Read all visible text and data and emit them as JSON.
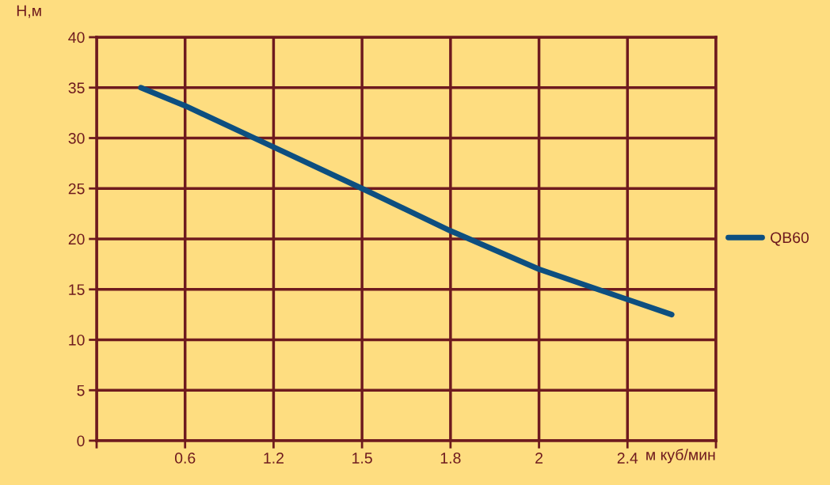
{
  "chart_data": {
    "type": "line",
    "ylabel": "Н,м",
    "xlabel": "м куб/мин",
    "categories": [
      null,
      null,
      "0.6",
      null,
      "1.2",
      null,
      "1.5",
      null,
      "1.8",
      null,
      "2",
      null,
      "2.4",
      null,
      null
    ],
    "series": [
      {
        "name": "QB60",
        "color": "#0d4f80",
        "values": [
          null,
          35,
          33.2,
          null,
          29.1,
          null,
          25,
          null,
          20.8,
          null,
          17,
          null,
          14,
          12.5,
          null
        ]
      }
    ],
    "ylim": [
      0,
      40
    ],
    "yticks": [
      0,
      5,
      10,
      15,
      20,
      25,
      30,
      35,
      40
    ],
    "grid": true,
    "legend": "right",
    "marker": "none",
    "line_style": "solid"
  }
}
